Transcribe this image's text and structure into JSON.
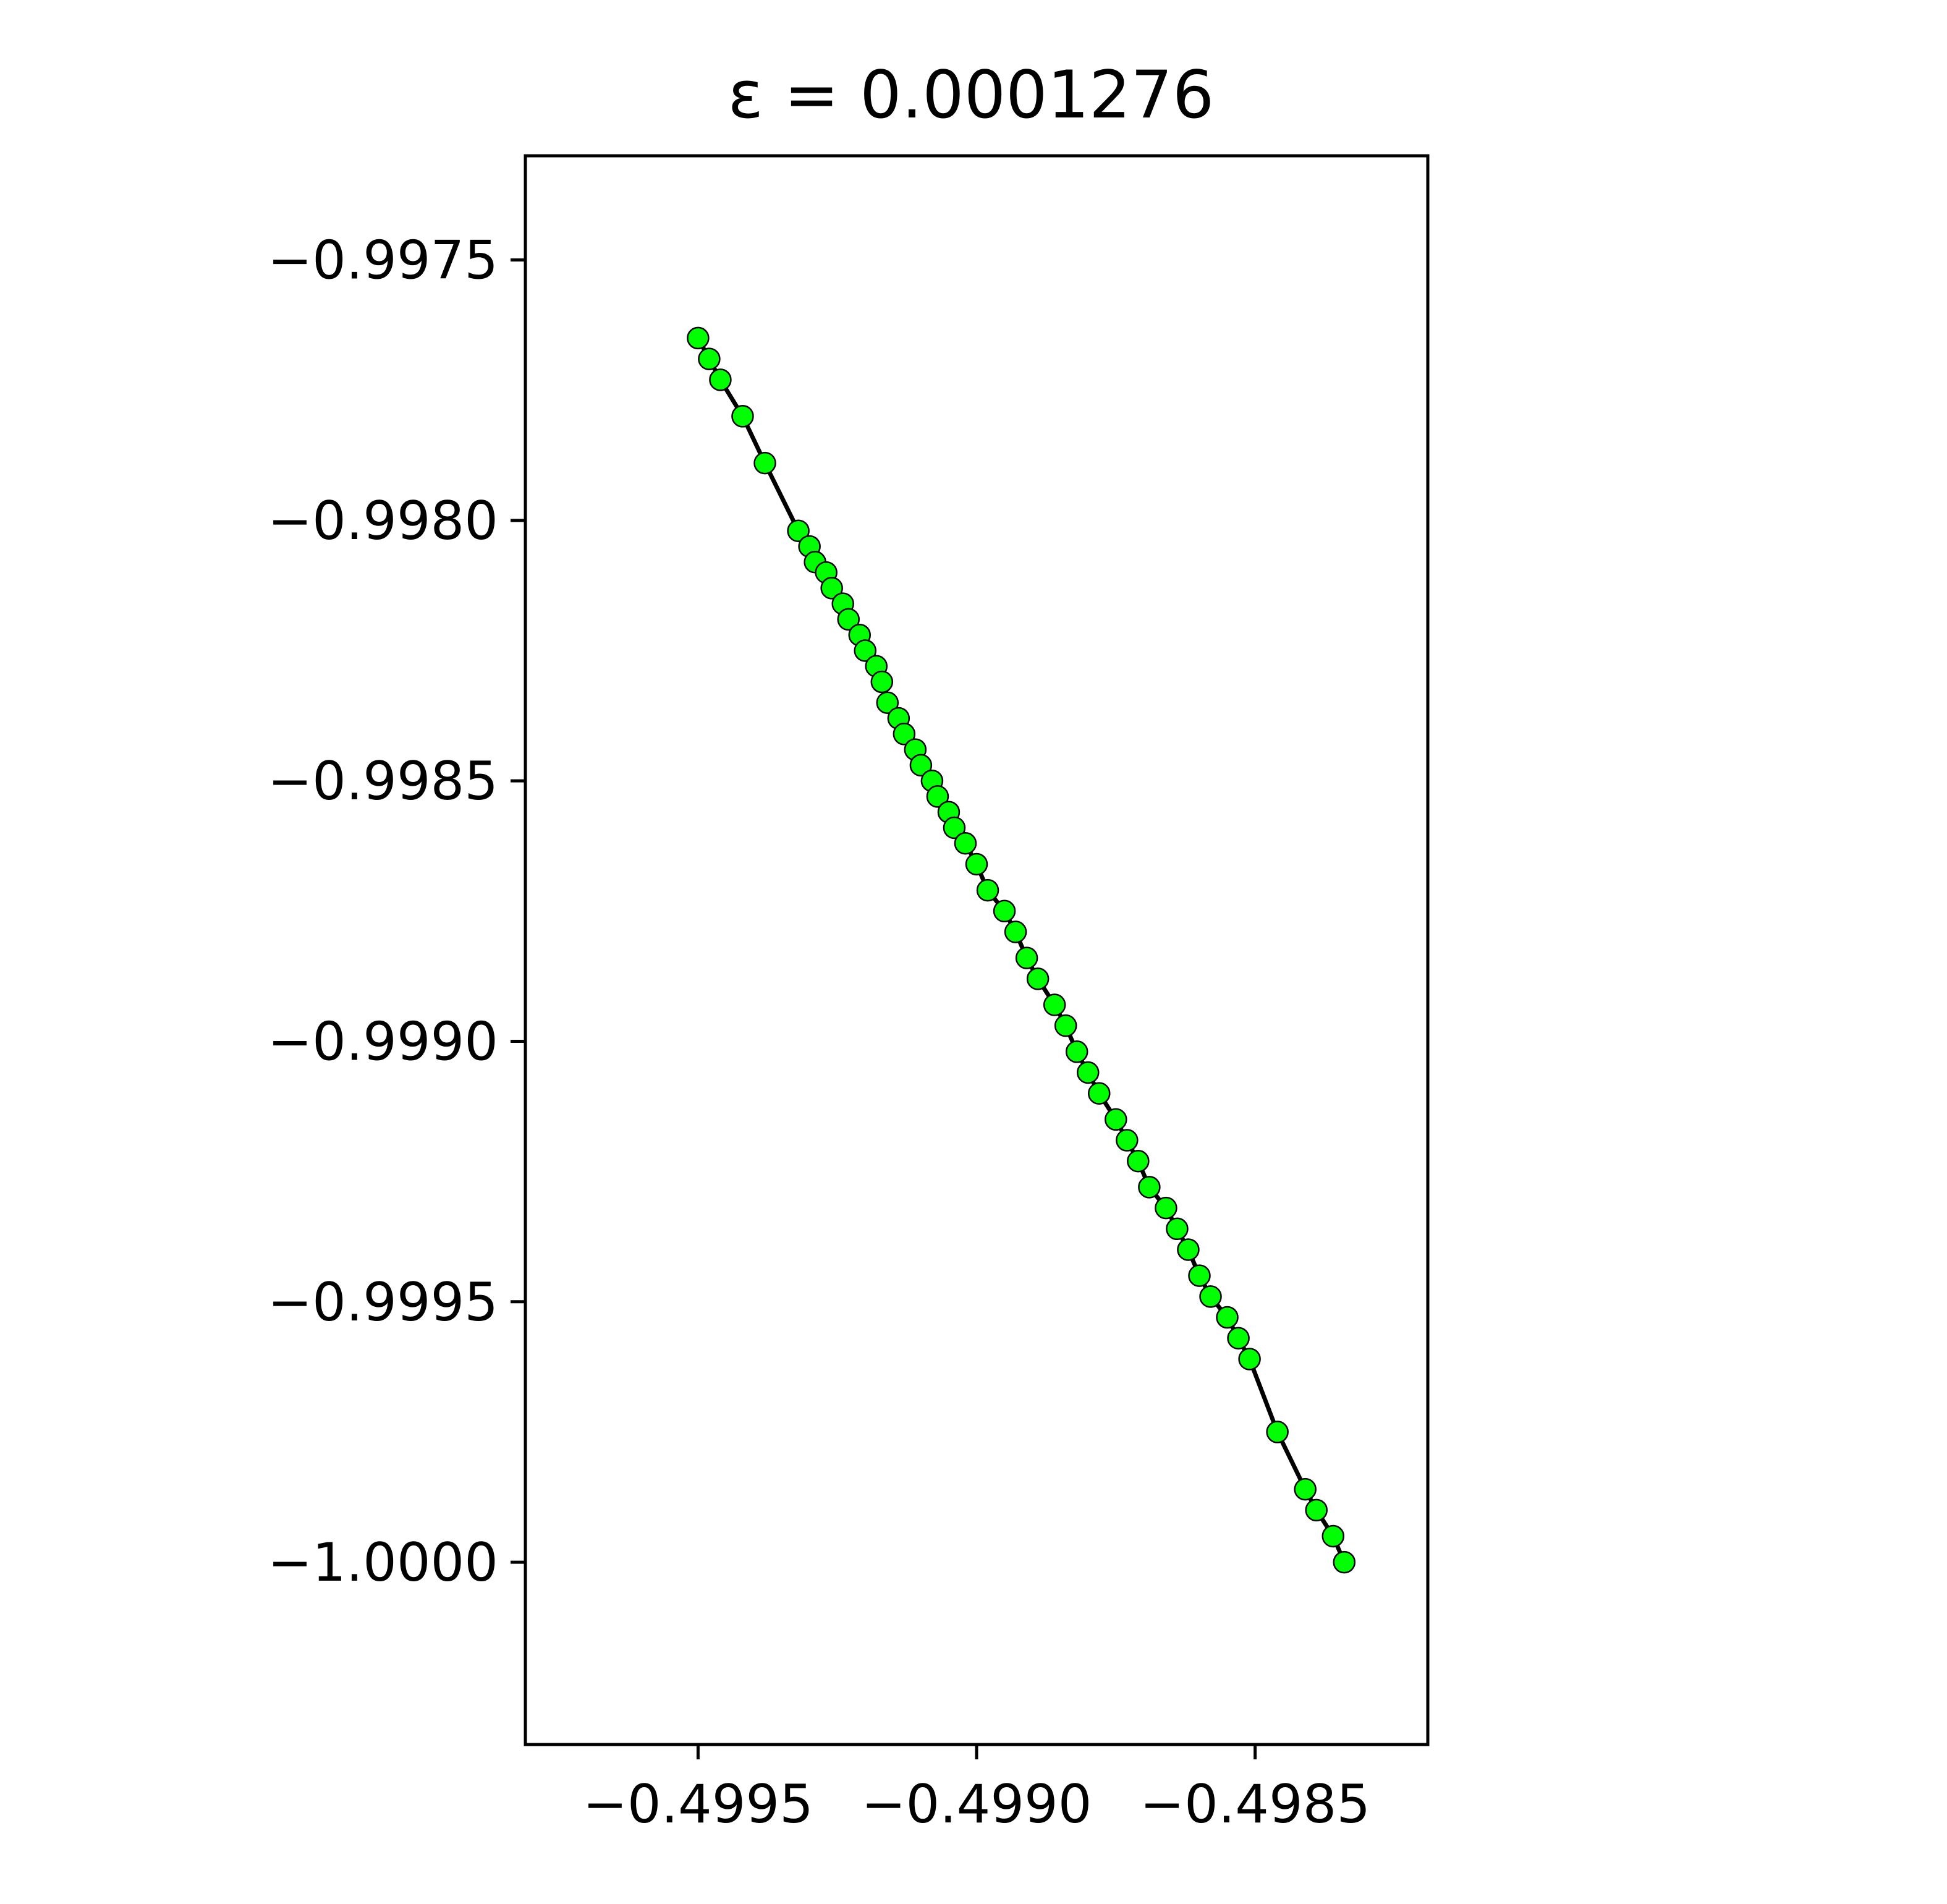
{
  "chart_data": {
    "type": "line",
    "title": "ε = 0.0001276",
    "xlabel": "",
    "ylabel": "",
    "xlim": [
      -0.49981,
      -0.49819
    ],
    "ylim": [
      -1.00035,
      -0.9973
    ],
    "x_ticks": [
      {
        "value": -0.4995,
        "label": "−0.4995"
      },
      {
        "value": -0.499,
        "label": "−0.4990"
      },
      {
        "value": -0.4985,
        "label": "−0.4985"
      }
    ],
    "y_ticks": [
      {
        "value": -0.9975,
        "label": "−0.9975"
      },
      {
        "value": -0.998,
        "label": "−0.9980"
      },
      {
        "value": -0.9985,
        "label": "−0.9985"
      },
      {
        "value": -0.999,
        "label": "−0.9990"
      },
      {
        "value": -0.9995,
        "label": "−0.9995"
      },
      {
        "value": -1.0,
        "label": "−1.0000"
      }
    ],
    "grid": false,
    "legend": null,
    "colors": {
      "line": "#000000",
      "marker_fill": "#00ff00",
      "marker_edge": "#000000",
      "axes": "#000000"
    },
    "series": [
      {
        "marker": "circle",
        "x": [
          -0.4995,
          -0.49948,
          -0.49946,
          -0.49942,
          -0.49938,
          -0.49932,
          -0.4993,
          -0.49929,
          -0.49927,
          -0.49926,
          -0.49924,
          -0.49923,
          -0.49921,
          -0.4992,
          -0.49918,
          -0.49917,
          -0.49916,
          -0.49914,
          -0.49913,
          -0.49911,
          -0.4991,
          -0.49908,
          -0.49907,
          -0.49905,
          -0.49904,
          -0.49902,
          -0.499,
          -0.49898,
          -0.49895,
          -0.49893,
          -0.49891,
          -0.49889,
          -0.49886,
          -0.49884,
          -0.49882,
          -0.4988,
          -0.49878,
          -0.49875,
          -0.49873,
          -0.49871,
          -0.49869,
          -0.49866,
          -0.49864,
          -0.49862,
          -0.4986,
          -0.49858,
          -0.49855,
          -0.49853,
          -0.49851,
          -0.49846,
          -0.49841,
          -0.49839,
          -0.49836,
          -0.49834
        ],
        "y": [
          -0.99765,
          -0.99769,
          -0.99773,
          -0.9978,
          -0.99789,
          -0.99802,
          -0.99805,
          -0.99808,
          -0.9981,
          -0.99813,
          -0.99816,
          -0.99819,
          -0.99822,
          -0.99825,
          -0.99828,
          -0.99831,
          -0.99835,
          -0.99838,
          -0.99841,
          -0.99844,
          -0.99847,
          -0.9985,
          -0.99853,
          -0.99856,
          -0.99859,
          -0.99862,
          -0.99866,
          -0.99871,
          -0.99875,
          -0.99879,
          -0.99884,
          -0.99888,
          -0.99893,
          -0.99897,
          -0.99902,
          -0.99906,
          -0.9991,
          -0.99915,
          -0.99919,
          -0.99923,
          -0.99928,
          -0.99932,
          -0.99936,
          -0.9994,
          -0.99945,
          -0.99949,
          -0.99953,
          -0.99957,
          -0.99961,
          -0.99975,
          -0.99986,
          -0.9999,
          -0.99995,
          -1.0
        ]
      }
    ]
  }
}
